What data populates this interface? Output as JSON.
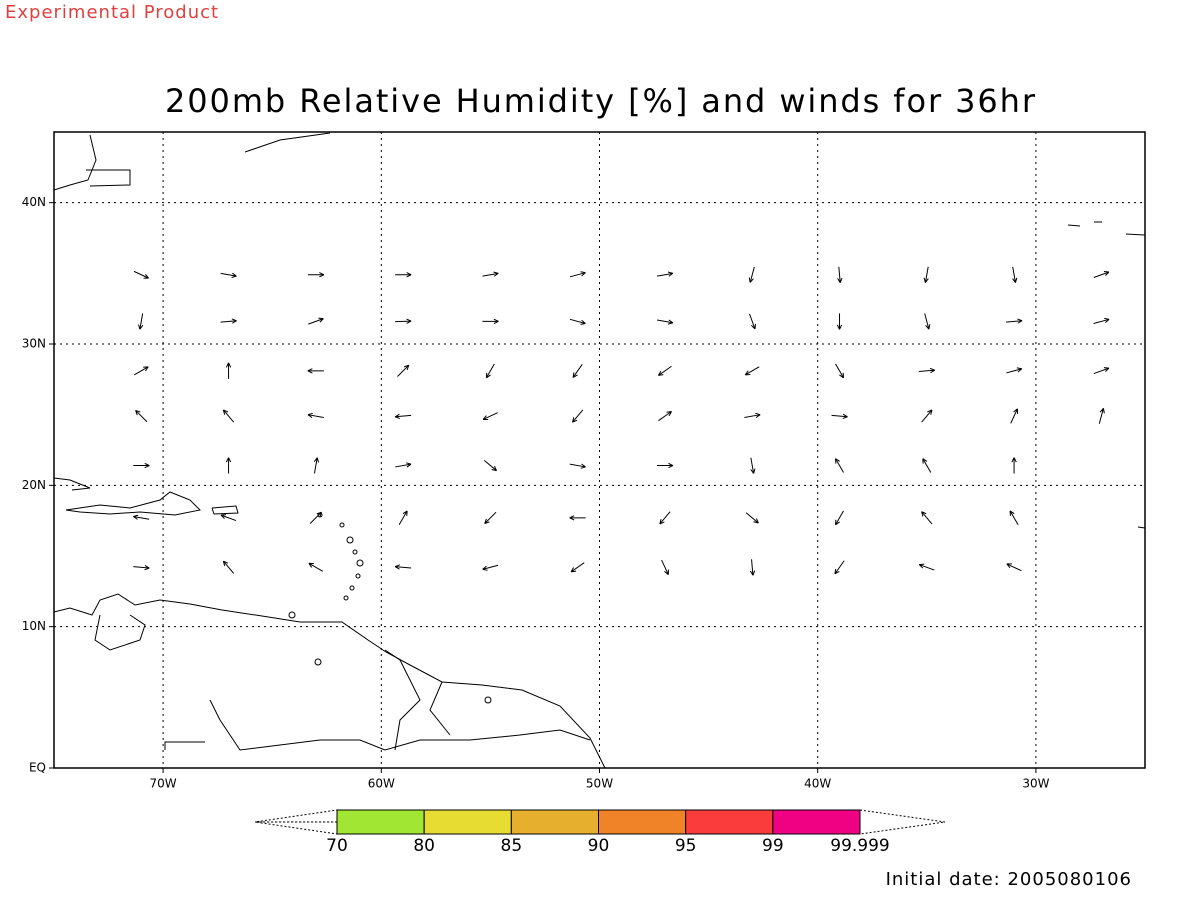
{
  "header": {
    "label": "Experimental Product"
  },
  "map": {
    "title": "200mb Relative Humidity [%] and winds for 36hr",
    "xlim": [
      -75,
      -25
    ],
    "ylim": [
      0,
      45
    ],
    "xticks": [
      {
        "value": -70,
        "label": "70W"
      },
      {
        "value": -60,
        "label": "60W"
      },
      {
        "value": -50,
        "label": "50W"
      },
      {
        "value": -40,
        "label": "40W"
      },
      {
        "value": -30,
        "label": "30W"
      }
    ],
    "yticks": [
      {
        "value": 0,
        "label": "EQ"
      },
      {
        "value": 10,
        "label": "10N"
      },
      {
        "value": 20,
        "label": "20N"
      },
      {
        "value": 30,
        "label": "30N"
      },
      {
        "value": 40,
        "label": "40N"
      }
    ],
    "grid": true,
    "winds": {
      "lons": [
        -71,
        -67,
        -63,
        -59,
        -55,
        -51,
        -47,
        -43,
        -39,
        -35,
        -31,
        -27
      ],
      "lats": [
        34.9,
        31.6,
        28.1,
        24.9,
        21.4,
        17.7,
        14.2
      ],
      "directions": [
        [
          115,
          100,
          90,
          90,
          80,
          75,
          80,
          195,
          175,
          190,
          170,
          70
        ],
        [
          190,
          85,
          70,
          88,
          90,
          105,
          100,
          160,
          180,
          165,
          85,
          75
        ],
        [
          60,
          0,
          270,
          45,
          210,
          215,
          235,
          240,
          150,
          85,
          75,
          70
        ],
        [
          315,
          320,
          280,
          265,
          245,
          220,
          55,
          80,
          95,
          40,
          25,
          15
        ],
        [
          90,
          0,
          10,
          80,
          130,
          100,
          90,
          170,
          330,
          330,
          0,
          null
        ],
        [
          280,
          290,
          45,
          30,
          225,
          270,
          220,
          130,
          210,
          320,
          330,
          null
        ],
        [
          95,
          320,
          300,
          275,
          255,
          235,
          155,
          175,
          215,
          290,
          295,
          null
        ]
      ]
    },
    "colorbar": {
      "levels": [
        70,
        80,
        85,
        90,
        95,
        99,
        99.999
      ],
      "colors": [
        "#a0e632",
        "#e6dc32",
        "#e6af2d",
        "#f08228",
        "#fa3c3c",
        "#f00082"
      ]
    }
  },
  "footer": {
    "label": "Initial date: 2005080106"
  }
}
